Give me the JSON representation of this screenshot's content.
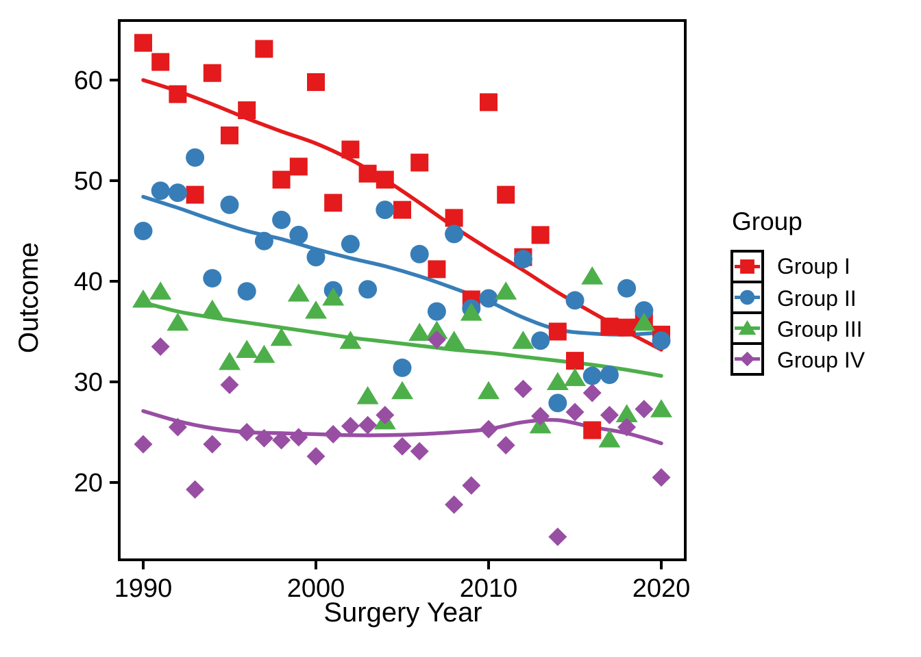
{
  "figure": {
    "background": "#ffffff",
    "panel_border_color": "#000000",
    "text_color": "#000000"
  },
  "axes": {
    "x": {
      "label": "Surgery Year",
      "ticks": [
        "1990",
        "2000",
        "2010",
        "2020"
      ],
      "tick_values": [
        1990,
        2000,
        2010,
        2020
      ]
    },
    "y": {
      "label": "Outcome",
      "ticks": [
        "60",
        "50",
        "40",
        "30",
        "20"
      ],
      "tick_values": [
        60,
        50,
        40,
        30,
        20
      ]
    }
  },
  "legend": {
    "title": "Group",
    "entries": [
      {
        "label": "Group I",
        "marker": "square",
        "color": "#E41A1C"
      },
      {
        "label": "Group II",
        "marker": "circle",
        "color": "#377EB8"
      },
      {
        "label": "Group III",
        "marker": "triangle",
        "color": "#4DAF4A"
      },
      {
        "label": "Group IV",
        "marker": "diamond",
        "color": "#984EA3"
      }
    ]
  },
  "chart_data": {
    "type": "scatter",
    "smoother": "loess",
    "title": "",
    "xlabel": "Surgery Year",
    "ylabel": "Outcome",
    "xlim": [
      1988.6,
      2021.4
    ],
    "ylim": [
      12.3,
      65.9
    ],
    "x_ticks": [
      1990,
      2000,
      2010,
      2020
    ],
    "y_ticks": [
      60,
      50,
      40,
      30,
      20
    ],
    "grid": false,
    "legend_position": "right",
    "series": [
      {
        "name": "Group I",
        "marker": "square",
        "color": "#E41A1C",
        "points": [
          [
            1990,
            63.7
          ],
          [
            1991,
            61.8
          ],
          [
            1992,
            58.6
          ],
          [
            1993,
            48.6
          ],
          [
            1994,
            60.7
          ],
          [
            1995,
            54.5
          ],
          [
            1996,
            57.0
          ],
          [
            1997,
            63.1
          ],
          [
            1998,
            50.1
          ],
          [
            1999,
            51.4
          ],
          [
            2000,
            59.8
          ],
          [
            2001,
            47.8
          ],
          [
            2002,
            53.1
          ],
          [
            2003,
            50.7
          ],
          [
            2004,
            50.1
          ],
          [
            2005,
            47.1
          ],
          [
            2006,
            51.8
          ],
          [
            2007,
            41.2
          ],
          [
            2008,
            46.3
          ],
          [
            2009,
            38.2
          ],
          [
            2010,
            57.8
          ],
          [
            2011,
            48.6
          ],
          [
            2012,
            42.4
          ],
          [
            2013,
            44.6
          ],
          [
            2014,
            35.0
          ],
          [
            2015,
            32.1
          ],
          [
            2016,
            25.2
          ],
          [
            2017,
            35.5
          ],
          [
            2018,
            35.4
          ],
          [
            2019,
            36.3
          ],
          [
            2020,
            34.7
          ]
        ],
        "trend": [
          [
            1990,
            60.0
          ],
          [
            1992,
            58.9
          ],
          [
            1994,
            57.6
          ],
          [
            1996,
            56.2
          ],
          [
            1998,
            54.9
          ],
          [
            2000,
            53.7
          ],
          [
            2002,
            52.1
          ],
          [
            2004,
            50.1
          ],
          [
            2006,
            47.8
          ],
          [
            2008,
            45.4
          ],
          [
            2010,
            43.2
          ],
          [
            2012,
            41.1
          ],
          [
            2014,
            38.9
          ],
          [
            2016,
            36.9
          ],
          [
            2018,
            35.0
          ],
          [
            2020,
            33.2
          ]
        ]
      },
      {
        "name": "Group II",
        "marker": "circle",
        "color": "#377EB8",
        "points": [
          [
            1990,
            45.0
          ],
          [
            1991,
            49.0
          ],
          [
            1992,
            48.8
          ],
          [
            1993,
            52.3
          ],
          [
            1994,
            40.3
          ],
          [
            1995,
            47.6
          ],
          [
            1996,
            39.0
          ],
          [
            1997,
            44.0
          ],
          [
            1998,
            46.1
          ],
          [
            1999,
            44.6
          ],
          [
            2000,
            42.4
          ],
          [
            2001,
            39.1
          ],
          [
            2002,
            43.7
          ],
          [
            2003,
            39.2
          ],
          [
            2004,
            47.1
          ],
          [
            2005,
            31.4
          ],
          [
            2006,
            42.7
          ],
          [
            2007,
            37.0
          ],
          [
            2008,
            44.7
          ],
          [
            2009,
            37.3
          ],
          [
            2010,
            38.3
          ],
          [
            2012,
            42.2
          ],
          [
            2013,
            34.1
          ],
          [
            2014,
            27.9
          ],
          [
            2015,
            38.1
          ],
          [
            2016,
            30.6
          ],
          [
            2017,
            30.7
          ],
          [
            2018,
            39.3
          ],
          [
            2019,
            37.1
          ],
          [
            2020,
            34.1
          ]
        ],
        "trend": [
          [
            1990,
            48.4
          ],
          [
            1992,
            47.3
          ],
          [
            1994,
            46.1
          ],
          [
            1996,
            45.0
          ],
          [
            1998,
            44.2
          ],
          [
            2000,
            43.2
          ],
          [
            2002,
            42.3
          ],
          [
            2004,
            41.5
          ],
          [
            2006,
            40.5
          ],
          [
            2008,
            39.3
          ],
          [
            2010,
            38.0
          ],
          [
            2012,
            36.4
          ],
          [
            2014,
            35.2
          ],
          [
            2016,
            34.8
          ],
          [
            2018,
            34.7
          ],
          [
            2020,
            34.9
          ]
        ]
      },
      {
        "name": "Group III",
        "marker": "triangle",
        "color": "#4DAF4A",
        "points": [
          [
            1990,
            38.2
          ],
          [
            1991,
            39.0
          ],
          [
            1992,
            35.9
          ],
          [
            1994,
            37.2
          ],
          [
            1995,
            32.0
          ],
          [
            1996,
            33.2
          ],
          [
            1997,
            32.7
          ],
          [
            1998,
            34.4
          ],
          [
            1999,
            38.8
          ],
          [
            2000,
            37.1
          ],
          [
            2001,
            38.4
          ],
          [
            2002,
            34.1
          ],
          [
            2003,
            28.6
          ],
          [
            2004,
            26.1
          ],
          [
            2005,
            29.1
          ],
          [
            2006,
            34.9
          ],
          [
            2007,
            35.1
          ],
          [
            2008,
            34.1
          ],
          [
            2009,
            36.9
          ],
          [
            2010,
            29.1
          ],
          [
            2011,
            39.0
          ],
          [
            2012,
            34.1
          ],
          [
            2013,
            25.7
          ],
          [
            2014,
            30.0
          ],
          [
            2015,
            30.4
          ],
          [
            2016,
            40.5
          ],
          [
            2017,
            24.3
          ],
          [
            2018,
            26.8
          ],
          [
            2019,
            35.9
          ],
          [
            2020,
            27.3
          ]
        ],
        "trend": [
          [
            1990,
            37.9
          ],
          [
            1992,
            37.0
          ],
          [
            1994,
            36.4
          ],
          [
            1996,
            35.9
          ],
          [
            1998,
            35.4
          ],
          [
            2000,
            34.9
          ],
          [
            2002,
            34.4
          ],
          [
            2004,
            34.0
          ],
          [
            2006,
            33.6
          ],
          [
            2008,
            33.2
          ],
          [
            2010,
            32.9
          ],
          [
            2012,
            32.5
          ],
          [
            2014,
            32.1
          ],
          [
            2016,
            31.7
          ],
          [
            2018,
            31.2
          ],
          [
            2020,
            30.6
          ]
        ]
      },
      {
        "name": "Group IV",
        "marker": "diamond",
        "color": "#984EA3",
        "points": [
          [
            1990,
            23.8
          ],
          [
            1991,
            33.5
          ],
          [
            1992,
            25.5
          ],
          [
            1993,
            19.3
          ],
          [
            1994,
            23.8
          ],
          [
            1995,
            29.7
          ],
          [
            1996,
            25.0
          ],
          [
            1997,
            24.4
          ],
          [
            1998,
            24.2
          ],
          [
            1999,
            24.5
          ],
          [
            2000,
            22.6
          ],
          [
            2001,
            24.8
          ],
          [
            2002,
            25.6
          ],
          [
            2003,
            25.7
          ],
          [
            2004,
            26.7
          ],
          [
            2005,
            23.6
          ],
          [
            2006,
            23.1
          ],
          [
            2007,
            34.2
          ],
          [
            2008,
            17.8
          ],
          [
            2009,
            19.7
          ],
          [
            2010,
            25.3
          ],
          [
            2011,
            23.7
          ],
          [
            2012,
            29.3
          ],
          [
            2013,
            26.6
          ],
          [
            2014,
            14.6
          ],
          [
            2015,
            27.0
          ],
          [
            2016,
            28.9
          ],
          [
            2017,
            26.7
          ],
          [
            2018,
            25.5
          ],
          [
            2019,
            27.3
          ],
          [
            2020,
            20.5
          ]
        ],
        "trend": [
          [
            1990,
            27.1
          ],
          [
            1992,
            26.1
          ],
          [
            1994,
            25.4
          ],
          [
            1996,
            25.0
          ],
          [
            1998,
            24.9
          ],
          [
            2000,
            24.8
          ],
          [
            2002,
            24.7
          ],
          [
            2004,
            24.7
          ],
          [
            2006,
            24.8
          ],
          [
            2008,
            25.0
          ],
          [
            2010,
            25.3
          ],
          [
            2012,
            26.0
          ],
          [
            2014,
            26.2
          ],
          [
            2016,
            25.5
          ],
          [
            2018,
            24.9
          ],
          [
            2020,
            23.9
          ]
        ]
      }
    ]
  }
}
